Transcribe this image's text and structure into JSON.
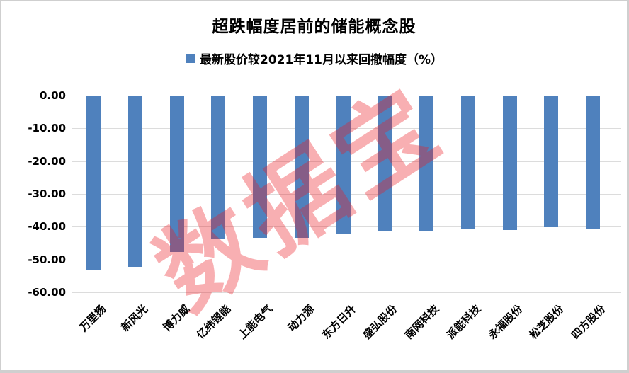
{
  "title": "超跌幅度居前的储能概念股",
  "legend": {
    "marker_icon": "square-icon",
    "marker_color": "#4F81BD",
    "label": "最新股价较2021年11月以来回撤幅度（%）"
  },
  "watermark": {
    "text": "数据宝",
    "color": "#ED1C24",
    "opacity": 0.35,
    "rotation_deg": -33
  },
  "chart_data": {
    "type": "bar",
    "title": "超跌幅度居前的储能概念股",
    "series": [
      {
        "name": "最新股价较2021年11月以来回撤幅度（%）",
        "values": [
          -53.0,
          -52.3,
          -47.8,
          -43.8,
          -43.4,
          -43.4,
          -42.4,
          -41.4,
          -41.2,
          -40.8,
          -41.0,
          -40.2,
          -40.5
        ]
      }
    ],
    "categories": [
      "万里扬",
      "新风光",
      "博力威",
      "亿纬锂能",
      "上能电气",
      "动力源",
      "东方日升",
      "盛弘股份",
      "南网科技",
      "派能科技",
      "永福股份",
      "松芝股份",
      "四方股份"
    ],
    "xlabel": "",
    "ylabel": "",
    "ylim": [
      -60,
      0
    ],
    "y_tick_labels": [
      "0.00",
      "-10.00",
      "-20.00",
      "-30.00",
      "-40.00",
      "-50.00",
      "-60.00"
    ],
    "grid": true,
    "gridline_color": "#dcdcdc",
    "bar_color": "#4F81BD",
    "legend_position": "top"
  }
}
